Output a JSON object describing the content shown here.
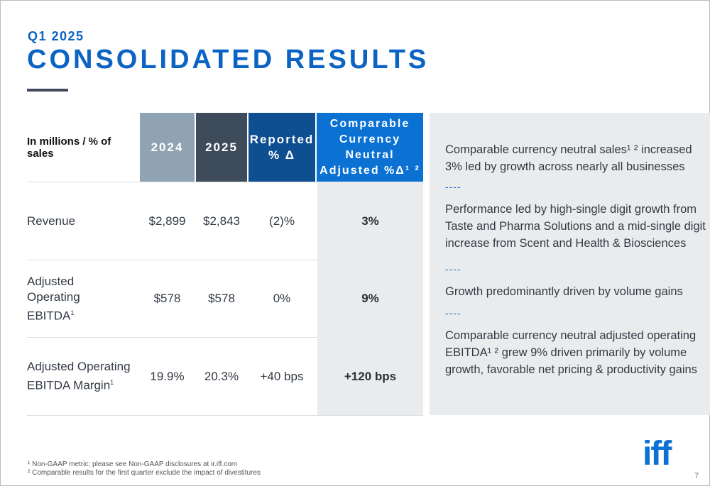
{
  "header": {
    "kicker": "Q1 2025",
    "title": "CONSOLIDATED RESULTS"
  },
  "table": {
    "label_header": "In millions / % of sales",
    "columns": [
      "2024",
      "2025",
      "Reported % Δ",
      "Comparable Currency Neutral Adjusted %Δ¹ ²"
    ],
    "rows": [
      {
        "label": "Revenue",
        "label_fn": "",
        "v2024": "$2,899",
        "v2025": "$2,843",
        "reported": "(2)%",
        "ccn": "3%"
      },
      {
        "label": "Adjusted Operating EBITDA",
        "label_fn": "1",
        "v2024": "$578",
        "v2025": "$578",
        "reported": "0%",
        "ccn": "9%"
      },
      {
        "label": "Adjusted Operating EBITDA Margin",
        "label_fn": "1",
        "v2024": "19.9%",
        "v2025": "20.3%",
        "reported": "+40 bps",
        "ccn": "+120 bps"
      }
    ]
  },
  "panel": {
    "divider": "----",
    "bullets": [
      "Comparable currency neutral sales¹ ² increased 3% led by growth across nearly all businesses",
      "Performance led by high-single digit growth from Taste and Pharma Solutions and a mid-single digit increase from Scent and Health & Biosciences",
      "Growth predominantly driven by volume gains",
      "Comparable currency neutral adjusted operating EBITDA¹ ² grew 9% driven primarily by volume growth, favorable net pricing & productivity gains"
    ]
  },
  "footnotes": [
    "¹ Non-GAAP metric; please see Non-GAAP disclosures at ir.iff.com",
    "² Comparable results for the first quarter exclude the impact of divestitures"
  ],
  "logo_text": "iff",
  "page_number": "7",
  "colors": {
    "brand_blue": "#0b63c4",
    "col_2024": "#8fa3b2",
    "col_2025": "#3d4b5b",
    "col_reported": "#0e4f91",
    "col_ccn": "#0b72d4"
  }
}
